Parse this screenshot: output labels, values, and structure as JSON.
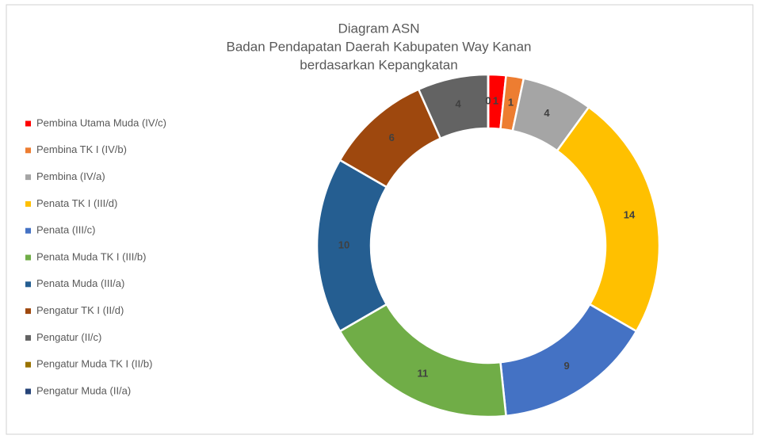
{
  "chart_data": {
    "type": "donut",
    "title": [
      "Diagram ASN",
      "Badan Pendapatan Daerah Kabupaten Way Kanan",
      "berdasarkan Kepangkatan"
    ],
    "categories": [
      "Pembina Utama Muda (IV/c)",
      "Pembina TK I (IV/b)",
      "Pembina (IV/a)",
      "Penata TK I (III/d)",
      "Penata (III/c)",
      "Penata Muda TK I (III/b)",
      "Penata Muda (III/a)",
      "Pengatur TK I (II/d)",
      "Pengatur (II/c)",
      "Pengatur Muda TK I (II/b)",
      "Pengatur Muda (II/a)"
    ],
    "values": [
      1,
      1,
      4,
      14,
      9,
      11,
      10,
      6,
      4,
      0,
      0
    ],
    "colors": [
      "#ff0000",
      "#ed7d31",
      "#a5a5a5",
      "#ffc000",
      "#4472c4",
      "#70ad47",
      "#255e91",
      "#9e480e",
      "#636363",
      "#997300",
      "#264478"
    ],
    "legend": "left"
  }
}
